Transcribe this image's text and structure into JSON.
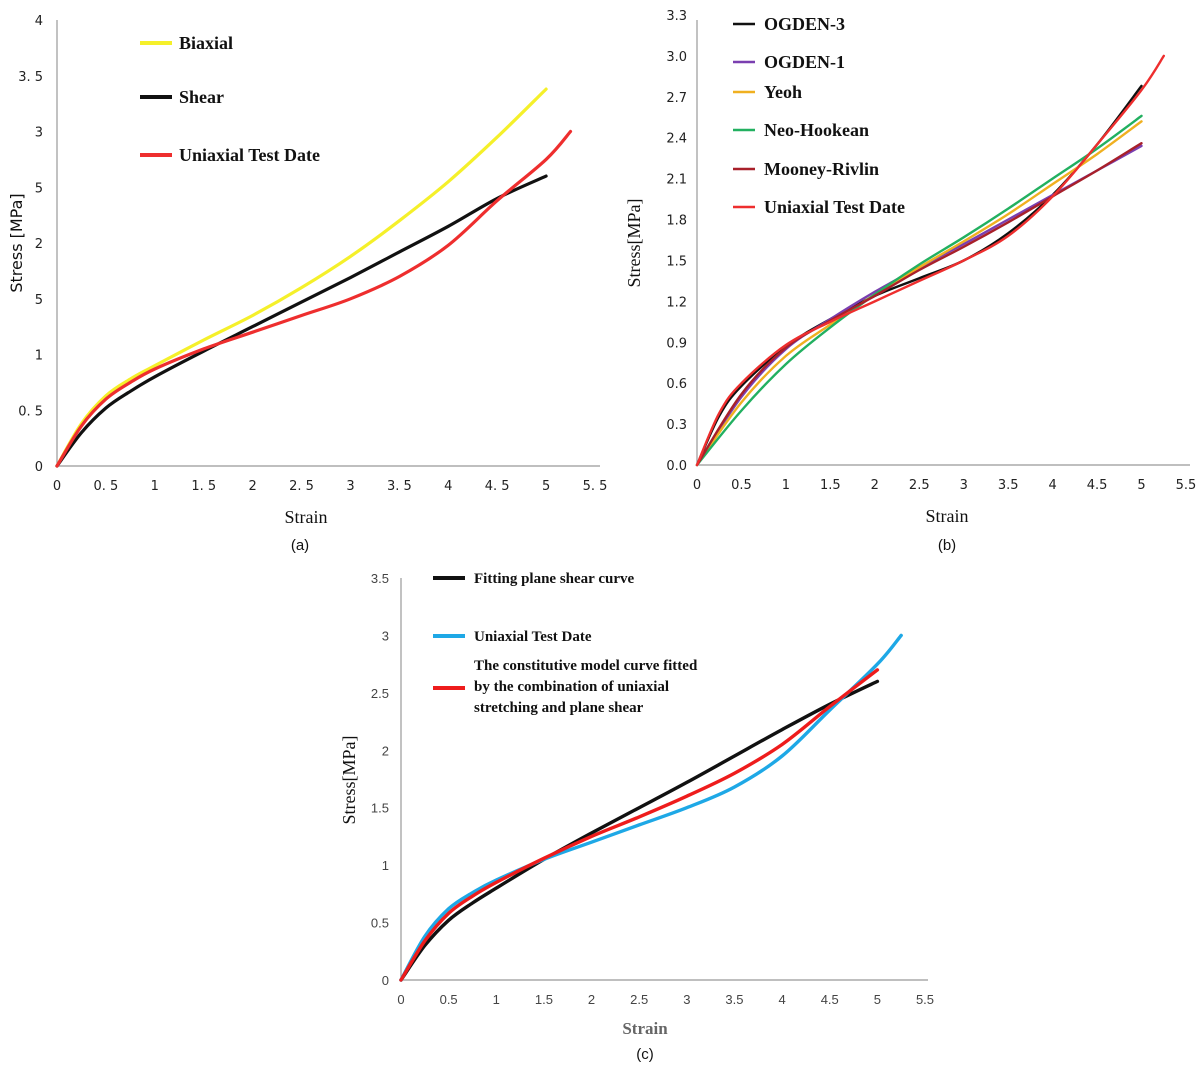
{
  "chart_data": [
    {
      "id": "a",
      "type": "line",
      "caption": "(a)",
      "xlabel": "Strain",
      "ylabel": "Stress [MPa]",
      "xlim": [
        0,
        5.5
      ],
      "ylim": [
        0,
        4
      ],
      "xticks": [
        "0",
        "0. 5",
        "1",
        "1. 5",
        "2",
        "2. 5",
        "3",
        "3. 5",
        "4",
        "4. 5",
        "5",
        "5. 5"
      ],
      "yticks": [
        "0",
        "0. 5",
        "1",
        "5",
        "2",
        "5",
        "3",
        "3. 5",
        "4"
      ],
      "legend_position": "top-left",
      "series": [
        {
          "name": "Biaxial",
          "color": "#f5f02a",
          "x": [
            0,
            0.25,
            0.5,
            0.75,
            1,
            1.5,
            2,
            2.5,
            3,
            3.5,
            4,
            4.5,
            5
          ],
          "y": [
            0,
            0.38,
            0.63,
            0.78,
            0.9,
            1.13,
            1.35,
            1.6,
            1.88,
            2.2,
            2.55,
            2.95,
            3.38
          ]
        },
        {
          "name": "Shear",
          "color": "#111111",
          "x": [
            0,
            0.25,
            0.5,
            0.75,
            1,
            1.5,
            2,
            2.5,
            3,
            3.5,
            4,
            4.5,
            5
          ],
          "y": [
            0,
            0.3,
            0.52,
            0.67,
            0.8,
            1.03,
            1.25,
            1.47,
            1.69,
            1.92,
            2.15,
            2.4,
            2.6
          ]
        },
        {
          "name": "Uniaxial Test Date",
          "color": "#ee2e2e",
          "x": [
            0,
            0.25,
            0.5,
            0.75,
            1,
            1.5,
            2,
            2.5,
            3,
            3.5,
            4,
            4.5,
            5,
            5.25
          ],
          "y": [
            0,
            0.36,
            0.6,
            0.75,
            0.87,
            1.05,
            1.2,
            1.35,
            1.5,
            1.7,
            1.98,
            2.38,
            2.75,
            3.0
          ]
        }
      ]
    },
    {
      "id": "b",
      "type": "line",
      "caption": "(b)",
      "xlabel": "Strain",
      "ylabel": "Stress[MPa]",
      "xlim": [
        0,
        5.5
      ],
      "ylim": [
        0,
        3.3
      ],
      "xticks": [
        "0",
        "0.5",
        "1",
        "1.5",
        "2",
        "2.5",
        "3",
        "3.5",
        "4",
        "4.5",
        "5",
        "5.5"
      ],
      "yticks": [
        "0.0",
        "0.3",
        "0.6",
        "0.9",
        "1.2",
        "1.5",
        "1.8",
        "2.1",
        "2.4",
        "2.7",
        "3.0",
        "3.3"
      ],
      "legend_position": "top-left",
      "series": [
        {
          "name": "OGDEN-3",
          "color": "#111111",
          "x": [
            0,
            0.25,
            0.5,
            1,
            1.5,
            2,
            2.5,
            3,
            3.5,
            4,
            4.5,
            5
          ],
          "y": [
            0,
            0.36,
            0.58,
            0.87,
            1.07,
            1.24,
            1.37,
            1.5,
            1.7,
            1.98,
            2.35,
            2.78
          ]
        },
        {
          "name": "OGDEN-1",
          "color": "#7a3fb0",
          "x": [
            0,
            0.5,
            1,
            1.5,
            2,
            2.5,
            3,
            3.5,
            4,
            4.5,
            5
          ],
          "y": [
            0,
            0.5,
            0.85,
            1.07,
            1.27,
            1.45,
            1.62,
            1.8,
            1.98,
            2.16,
            2.34
          ]
        },
        {
          "name": "Yeoh",
          "color": "#f0b020",
          "x": [
            0,
            0.5,
            1,
            1.5,
            2,
            2.5,
            3,
            3.5,
            4,
            4.5,
            5
          ],
          "y": [
            0,
            0.46,
            0.8,
            1.03,
            1.25,
            1.45,
            1.64,
            1.84,
            2.06,
            2.28,
            2.52
          ]
        },
        {
          "name": "Neo-Hookean",
          "color": "#22b060",
          "x": [
            0,
            0.5,
            1,
            1.5,
            2,
            2.5,
            3,
            3.5,
            4,
            4.5,
            5
          ],
          "y": [
            0,
            0.4,
            0.74,
            1.01,
            1.25,
            1.47,
            1.67,
            1.88,
            2.1,
            2.32,
            2.56
          ]
        },
        {
          "name": "Mooney-Rivlin",
          "color": "#a8202a",
          "x": [
            0,
            0.5,
            1,
            1.5,
            2,
            2.5,
            3,
            3.5,
            4,
            4.5,
            5
          ],
          "y": [
            0,
            0.52,
            0.86,
            1.06,
            1.24,
            1.43,
            1.6,
            1.78,
            1.97,
            2.16,
            2.36
          ]
        },
        {
          "name": "Uniaxial Test Date",
          "color": "#ee2e2e",
          "x": [
            0,
            0.25,
            0.5,
            1,
            1.5,
            2,
            2.5,
            3,
            3.5,
            4,
            4.5,
            5,
            5.25
          ],
          "y": [
            0,
            0.38,
            0.6,
            0.88,
            1.05,
            1.2,
            1.35,
            1.5,
            1.68,
            1.97,
            2.35,
            2.75,
            3.0
          ]
        }
      ]
    },
    {
      "id": "c",
      "type": "line",
      "caption": "(c)",
      "xlabel": "Strain",
      "ylabel": "Stress[MPa]",
      "xlim": [
        0,
        5.5
      ],
      "ylim": [
        0,
        3.5
      ],
      "xticks": [
        "0",
        "0.5",
        "1",
        "1.5",
        "2",
        "2.5",
        "3",
        "3.5",
        "4",
        "4.5",
        "5",
        "5.5"
      ],
      "yticks": [
        "0",
        "0.5",
        "1",
        "1.5",
        "2",
        "2.5",
        "3",
        "3.5"
      ],
      "legend_position": "top-left",
      "series": [
        {
          "name": "Fitting plane shear curve",
          "color": "#111111",
          "x": [
            0,
            0.25,
            0.5,
            0.75,
            1,
            1.5,
            2,
            2.5,
            3,
            3.5,
            4,
            4.5,
            5
          ],
          "y": [
            0,
            0.3,
            0.52,
            0.67,
            0.8,
            1.05,
            1.28,
            1.5,
            1.72,
            1.95,
            2.18,
            2.4,
            2.6
          ]
        },
        {
          "name": "Uniaxial Test Date",
          "color": "#1ea8e6",
          "x": [
            0,
            0.25,
            0.5,
            0.75,
            1,
            1.5,
            2,
            2.5,
            3,
            3.5,
            4,
            4.5,
            5,
            5.25
          ],
          "y": [
            0,
            0.38,
            0.62,
            0.76,
            0.87,
            1.05,
            1.2,
            1.35,
            1.5,
            1.68,
            1.95,
            2.35,
            2.75,
            3.0
          ]
        },
        {
          "name": "The constitutive model curve fitted by the combination of uniaxial stretching and plane shear",
          "color": "#ee1c1c",
          "x": [
            0,
            0.25,
            0.5,
            0.75,
            1,
            1.5,
            2,
            2.5,
            3,
            3.5,
            4,
            4.5,
            5
          ],
          "y": [
            0,
            0.34,
            0.58,
            0.73,
            0.85,
            1.06,
            1.25,
            1.42,
            1.6,
            1.8,
            2.05,
            2.38,
            2.7
          ]
        }
      ]
    }
  ]
}
